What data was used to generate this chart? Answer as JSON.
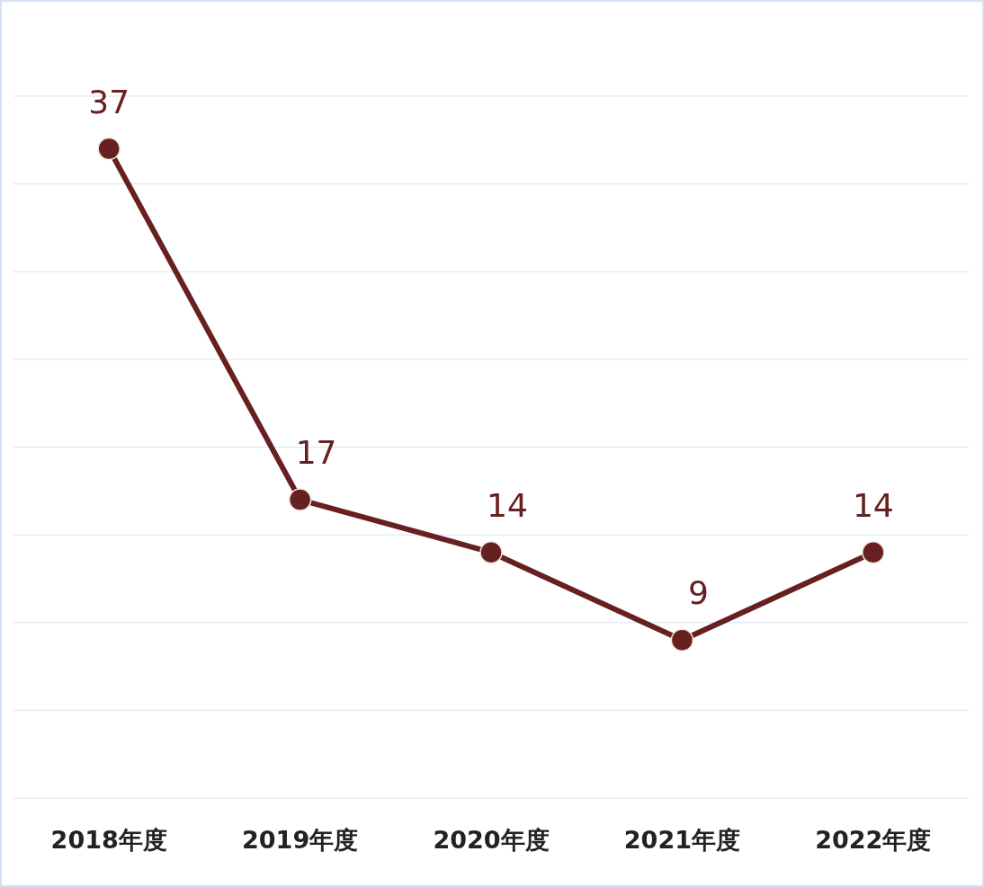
{
  "chart_data": {
    "type": "line",
    "categories": [
      "2018年度",
      "2019年度",
      "2020年度",
      "2021年度",
      "2022年度"
    ],
    "series": [
      {
        "color": "#66201f",
        "values": [
          37,
          17,
          14,
          9,
          14
        ]
      }
    ],
    "ylim": [
      0,
      40
    ],
    "yticks": [
      {
        "value": 0,
        "label": null
      },
      {
        "value": 5,
        "label": null
      },
      {
        "value": 10,
        "label": null
      },
      {
        "value": 15,
        "label": null
      },
      {
        "value": 20,
        "label": null
      },
      {
        "value": 25,
        "label": null
      },
      {
        "value": 30,
        "label": null
      },
      {
        "value": 35,
        "label": null
      },
      {
        "value": 40,
        "label": null
      }
    ],
    "tick_labels": "x",
    "grid": "y",
    "marker": "circle",
    "line_style": "solid",
    "data_labels": true
  }
}
